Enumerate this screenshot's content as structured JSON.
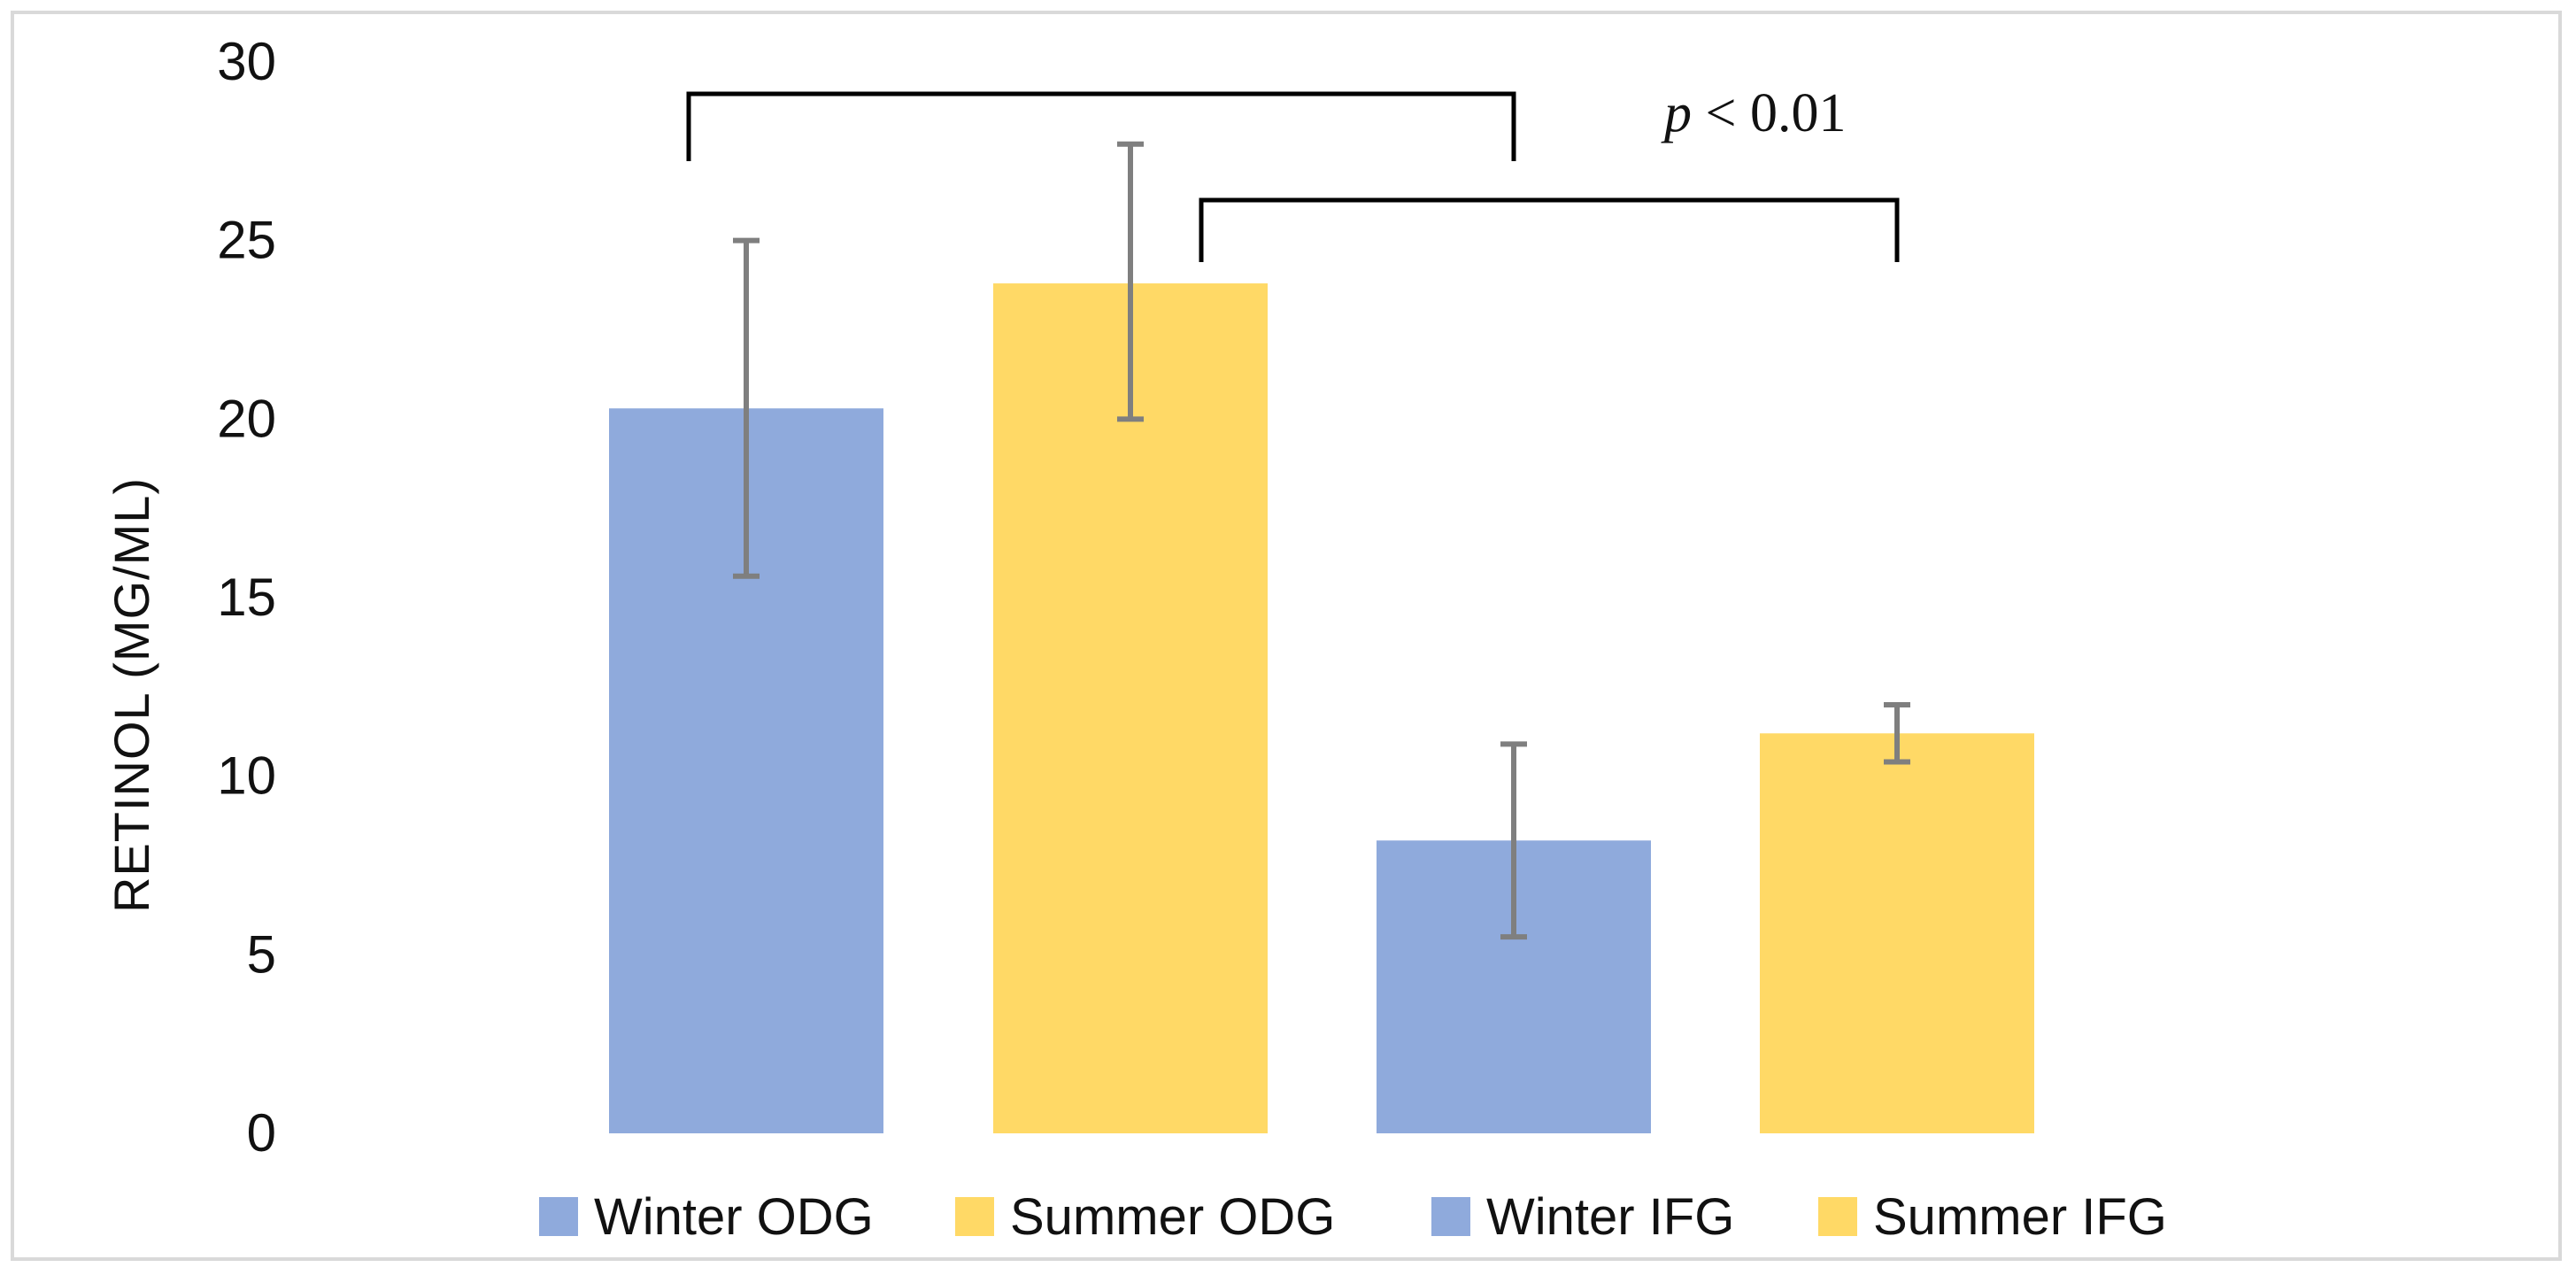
{
  "chart_data": {
    "type": "bar",
    "title": "",
    "xlabel": "",
    "ylabel": "RETINOL (MG/ML)",
    "ylim": [
      0,
      30
    ],
    "yticks": [
      0,
      5,
      10,
      15,
      20,
      25,
      30
    ],
    "categories": [
      "Winter ODG",
      "Summer ODG",
      "Winter IFG",
      "Summer IFG"
    ],
    "values": [
      20.3,
      23.8,
      8.2,
      11.2
    ],
    "error_low": [
      15.6,
      20.0,
      5.5,
      10.4
    ],
    "error_high": [
      25.0,
      27.7,
      10.9,
      12.0
    ],
    "colors": [
      "#8faadc",
      "#ffd966",
      "#8faadc",
      "#ffd966"
    ],
    "error_color": "#7f7f7f",
    "legend": {
      "position": "bottom",
      "entries": [
        {
          "label": "Winter ODG",
          "color": "#8faadc"
        },
        {
          "label": "Summer ODG",
          "color": "#ffd966"
        },
        {
          "label": "Winter IFG",
          "color": "#8faadc"
        },
        {
          "label": "Summer IFG",
          "color": "#ffd966"
        }
      ]
    },
    "significance": {
      "p_symbol": "p",
      "p_rest": " < 0.01",
      "brackets": [
        {
          "from": "Winter ODG",
          "to": "Winter IFG"
        },
        {
          "from": "Summer ODG",
          "to": "Summer IFG"
        }
      ]
    }
  }
}
